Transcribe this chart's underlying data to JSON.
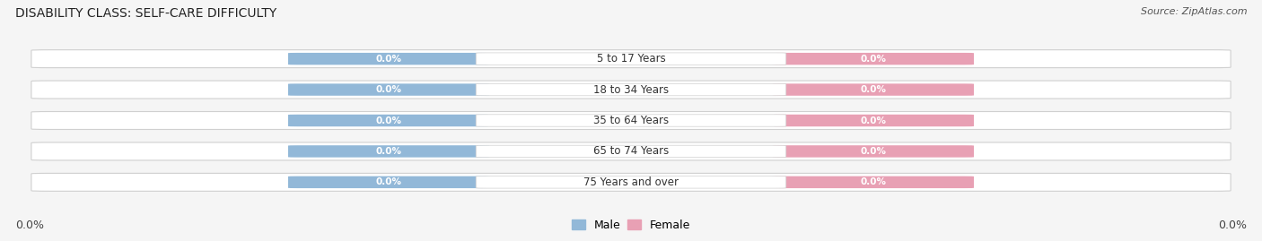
{
  "title": "DISABILITY CLASS: SELF-CARE DIFFICULTY",
  "source": "Source: ZipAtlas.com",
  "categories": [
    "5 to 17 Years",
    "18 to 34 Years",
    "35 to 64 Years",
    "65 to 74 Years",
    "75 Years and over"
  ],
  "male_values": [
    0.0,
    0.0,
    0.0,
    0.0,
    0.0
  ],
  "female_values": [
    0.0,
    0.0,
    0.0,
    0.0,
    0.0
  ],
  "male_color": "#92b8d8",
  "female_color": "#e8a0b4",
  "bar_bg_color": "#ebebeb",
  "bar_stroke_color": "#d0d0d0",
  "background_color": "#f5f5f5",
  "left_tick_label": "0.0%",
  "right_tick_label": "0.0%",
  "title_fontsize": 10,
  "source_fontsize": 8,
  "value_label_fontsize": 7.5,
  "category_fontsize": 8.5,
  "tick_fontsize": 9,
  "legend_fontsize": 9,
  "figsize": [
    14.06,
    2.69
  ],
  "dpi": 100
}
